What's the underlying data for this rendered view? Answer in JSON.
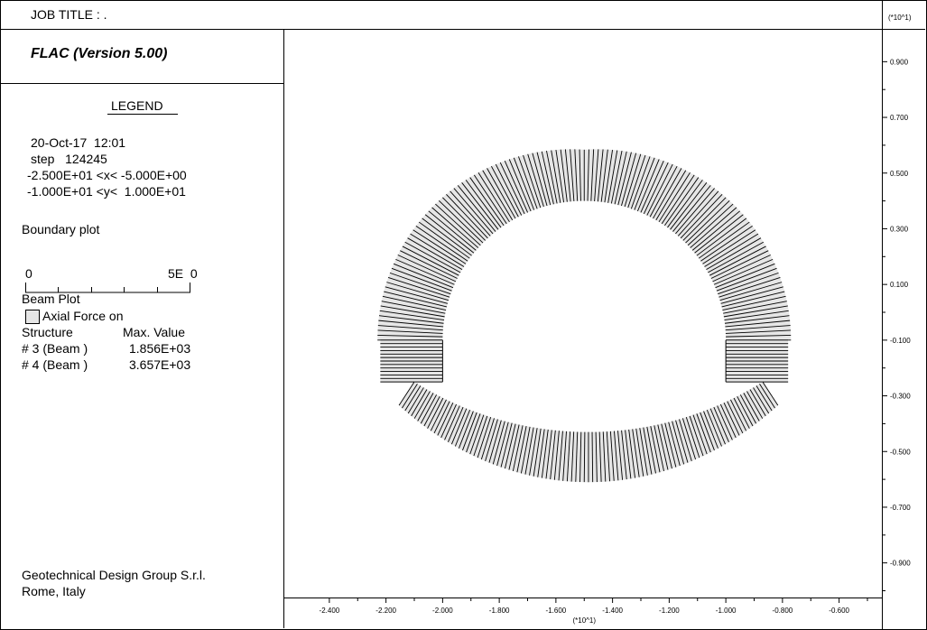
{
  "header": {
    "job_title": "JOB TITLE : ."
  },
  "software": {
    "version": "FLAC (Version 5.00)"
  },
  "legend": {
    "heading": "LEGEND",
    "date": "20-Oct-17  12:01",
    "step": "step   124245",
    "x_range": "-2.500E+01 <x< -5.000E+00",
    "y_range": "-1.000E+01 <y<  1.000E+01",
    "boundary_plot": "Boundary plot",
    "scale_min": "0",
    "scale_max": "5E  0",
    "beam_plot": "Beam Plot",
    "axial_force": "Axial Force on",
    "structure_header": "Structure",
    "max_value_header": "Max. Value",
    "rows": [
      {
        "structure": "# 3 (Beam )",
        "value": "1.856E+03"
      },
      {
        "structure": "# 4 (Beam )",
        "value": "3.657E+03"
      }
    ]
  },
  "footer": {
    "company": "Geotechnical Design Group S.r.l.",
    "location": "Rome, Italy"
  },
  "chart_data": {
    "type": "line",
    "title": "",
    "x_multiplier": "(*10^1)",
    "y_multiplier": "(*10^1)",
    "x_ticks": [
      "-2.400",
      "-2.200",
      "-2.000",
      "-1.800",
      "-1.600",
      "-1.400",
      "-1.200",
      "-1.000",
      "-0.800",
      "-0.600"
    ],
    "y_ticks": [
      "0.900",
      "0.700",
      "0.500",
      "0.300",
      "0.100",
      "-0.100",
      "-0.300",
      "-0.500",
      "-0.700",
      "-0.900"
    ],
    "xlim": [
      -2.5,
      -0.5
    ],
    "ylim": [
      -1.0,
      1.0
    ],
    "structures": [
      {
        "name": "# 3 (Beam )",
        "shape": "arch crown and sidewalls",
        "center": [
          -1.5,
          -0.1
        ],
        "radius": 0.5,
        "sidewall_bottom": -0.25,
        "max_axial": 1856.0
      },
      {
        "name": "# 4 (Beam )",
        "shape": "invert arc",
        "end_left": [
          -2.1,
          -0.25
        ],
        "end_right": [
          -0.87,
          -0.25
        ],
        "bottom": [
          -1.5,
          -0.43
        ],
        "max_axial": 3657.0
      }
    ],
    "colors": {
      "fill": "#e6e6e6",
      "line": "#000000"
    }
  }
}
